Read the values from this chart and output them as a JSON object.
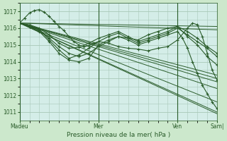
{
  "title": "Pression niveau de la mer( hPa )",
  "bg_color": "#cce8cc",
  "plot_bg_color": "#d4ede8",
  "grid_color": "#a8c8b8",
  "line_color": "#2a5c2a",
  "ylim": [
    1010.5,
    1017.5
  ],
  "yticks": [
    1011,
    1012,
    1013,
    1014,
    1015,
    1016,
    1017
  ],
  "xtick_labels": [
    "Madeu",
    "Mer",
    "Ven",
    "Sam|"
  ],
  "xtick_positions": [
    0,
    96,
    192,
    240
  ],
  "total_hours": 240,
  "series": [
    {
      "x": [
        0,
        240
      ],
      "y": [
        1016.3,
        1011.6
      ],
      "noisy": false
    },
    {
      "x": [
        0,
        240
      ],
      "y": [
        1016.3,
        1011.0
      ],
      "noisy": false
    },
    {
      "x": [
        0,
        240
      ],
      "y": [
        1016.3,
        1010.9
      ],
      "noisy": false
    },
    {
      "x": [
        0,
        240
      ],
      "y": [
        1016.3,
        1012.4
      ],
      "noisy": false
    },
    {
      "x": [
        0,
        240
      ],
      "y": [
        1016.3,
        1012.8
      ],
      "noisy": false
    },
    {
      "x": [
        0,
        240
      ],
      "y": [
        1016.3,
        1013.0
      ],
      "noisy": false
    },
    {
      "x": [
        0,
        240
      ],
      "y": [
        1016.3,
        1013.2
      ],
      "noisy": false
    },
    {
      "x": [
        0,
        240
      ],
      "y": [
        1016.3,
        1015.9
      ],
      "noisy": false
    },
    {
      "x": [
        0,
        240
      ],
      "y": [
        1016.3,
        1016.1
      ],
      "noisy": false
    }
  ],
  "noisy_series": [
    {
      "x": [
        0,
        12,
        24,
        36,
        48,
        60,
        72,
        84,
        96,
        108,
        120,
        132,
        144,
        156,
        168,
        180,
        192,
        204,
        216,
        228,
        240
      ],
      "y": [
        1016.3,
        1016.1,
        1015.8,
        1015.2,
        1014.5,
        1014.1,
        1014.0,
        1014.2,
        1015.0,
        1015.3,
        1015.5,
        1015.4,
        1015.3,
        1015.6,
        1015.8,
        1016.0,
        1016.1,
        1015.8,
        1015.4,
        1014.9,
        1014.5
      ]
    },
    {
      "x": [
        0,
        12,
        24,
        36,
        48,
        60,
        72,
        84,
        96,
        108,
        120,
        132,
        144,
        156,
        168,
        180,
        192,
        204,
        216,
        228,
        240
      ],
      "y": [
        1016.3,
        1016.1,
        1015.9,
        1015.3,
        1014.7,
        1014.2,
        1014.4,
        1014.8,
        1015.2,
        1015.5,
        1015.7,
        1015.4,
        1015.1,
        1015.3,
        1015.5,
        1015.7,
        1016.0,
        1015.6,
        1015.2,
        1014.8,
        1014.3
      ]
    },
    {
      "x": [
        0,
        12,
        24,
        36,
        48,
        60,
        72,
        84,
        96,
        108,
        120,
        132,
        144,
        156,
        168,
        180,
        192,
        204,
        216,
        228,
        240
      ],
      "y": [
        1016.3,
        1016.2,
        1016.0,
        1015.6,
        1015.1,
        1014.8,
        1014.85,
        1015.1,
        1015.4,
        1015.6,
        1015.8,
        1015.5,
        1015.2,
        1015.4,
        1015.6,
        1015.8,
        1016.1,
        1015.5,
        1015.0,
        1014.3,
        1013.8
      ]
    },
    {
      "x": [
        0,
        6,
        12,
        18,
        24,
        30,
        36,
        42,
        48,
        54,
        60,
        66,
        72,
        78,
        84,
        90,
        96,
        108,
        120,
        132,
        144,
        156,
        168,
        180,
        192,
        204,
        210,
        216,
        222,
        228,
        234,
        240
      ],
      "y": [
        1016.3,
        1016.6,
        1016.9,
        1017.05,
        1017.1,
        1016.95,
        1016.7,
        1016.4,
        1016.1,
        1015.85,
        1015.5,
        1015.2,
        1015.0,
        1014.9,
        1014.95,
        1015.1,
        1015.2,
        1015.1,
        1014.9,
        1014.8,
        1014.75,
        1014.65,
        1014.8,
        1014.9,
        1015.3,
        1016.0,
        1016.3,
        1016.2,
        1015.5,
        1014.5,
        1013.5,
        1012.9
      ]
    },
    {
      "x": [
        0,
        12,
        24,
        36,
        48,
        60,
        72,
        84,
        96,
        108,
        120,
        132,
        144,
        156,
        168,
        180,
        192,
        198,
        204,
        210,
        216,
        222,
        228,
        234,
        240
      ],
      "y": [
        1016.3,
        1016.1,
        1015.9,
        1015.4,
        1014.9,
        1014.5,
        1014.3,
        1014.5,
        1014.9,
        1015.2,
        1015.5,
        1015.3,
        1015.0,
        1015.2,
        1015.4,
        1015.6,
        1015.8,
        1015.4,
        1014.8,
        1014.0,
        1013.3,
        1012.6,
        1012.1,
        1011.6,
        1011.2
      ]
    }
  ]
}
